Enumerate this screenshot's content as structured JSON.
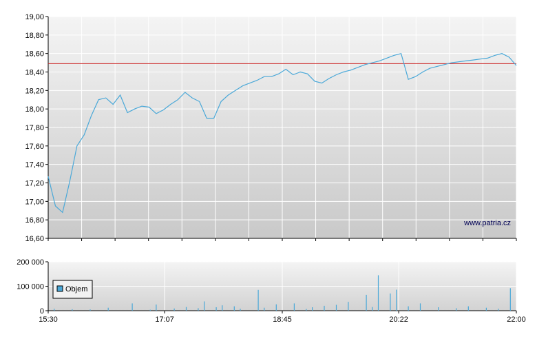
{
  "chart_data": [
    {
      "type": "line",
      "title": "",
      "watermark": "www.patria.cz",
      "ylim": [
        16.6,
        19.0
      ],
      "y_ticks": [
        "19,00",
        "18,80",
        "18,60",
        "18,40",
        "18,20",
        "18,00",
        "17,80",
        "17,60",
        "17,40",
        "17,20",
        "17,00",
        "16,80",
        "16,60"
      ],
      "reference_line": 18.49,
      "line_color": "#4aa8d8",
      "reference_color": "#cc2222",
      "grid": true,
      "series": [
        {
          "x": [
            "15:30",
            "15:36",
            "15:42",
            "15:48",
            "15:54",
            "16:00",
            "16:06",
            "16:12",
            "16:18",
            "16:24",
            "16:30",
            "16:36",
            "16:42",
            "16:48",
            "16:54",
            "17:00",
            "17:06",
            "17:12",
            "17:18",
            "17:24",
            "17:30",
            "17:36",
            "17:42",
            "17:48",
            "17:54",
            "18:00",
            "18:06",
            "18:12",
            "18:18",
            "18:24",
            "18:30",
            "18:36",
            "18:42",
            "18:48",
            "18:54",
            "19:00",
            "19:06",
            "19:12",
            "19:18",
            "19:24",
            "19:30",
            "19:36",
            "19:42",
            "19:48",
            "19:54",
            "20:00",
            "20:06",
            "20:12",
            "20:18",
            "20:24",
            "20:30",
            "20:36",
            "20:42",
            "20:48",
            "20:54",
            "21:00",
            "21:06",
            "21:12",
            "21:18",
            "21:24",
            "21:30",
            "21:36",
            "21:42",
            "21:48",
            "21:54",
            "22:00"
          ],
          "values": [
            17.27,
            16.95,
            16.88,
            17.22,
            17.6,
            17.72,
            17.93,
            18.1,
            18.12,
            18.05,
            18.15,
            17.96,
            18.0,
            18.03,
            18.02,
            17.95,
            17.99,
            18.05,
            18.1,
            18.18,
            18.12,
            18.08,
            17.9,
            17.9,
            18.08,
            18.15,
            18.2,
            18.25,
            18.28,
            18.31,
            18.35,
            18.35,
            18.38,
            18.43,
            18.37,
            18.4,
            18.38,
            18.3,
            18.28,
            18.33,
            18.37,
            18.4,
            18.42,
            18.45,
            18.48,
            18.5,
            18.52,
            18.55,
            18.58,
            18.6,
            18.32,
            18.35,
            18.4,
            18.44,
            18.46,
            18.48,
            18.5,
            18.51,
            18.52,
            18.53,
            18.54,
            18.55,
            18.58,
            18.6,
            18.56,
            18.47
          ]
        }
      ]
    },
    {
      "type": "bar",
      "title": "",
      "ylim": [
        0,
        200000
      ],
      "y_ticks": [
        "200 000",
        "100 000",
        "0"
      ],
      "x_ticks": [
        "15:30",
        "17:07",
        "18:45",
        "20:22",
        "22:00"
      ],
      "legend": {
        "label": "Objem",
        "position": "left"
      },
      "bar_color": "#4aa8d8",
      "grid": true,
      "series": [
        {
          "name": "Objem",
          "x": [
            "15:35",
            "15:50",
            "16:05",
            "16:20",
            "16:40",
            "16:55",
            "17:00",
            "17:15",
            "17:25",
            "17:35",
            "17:40",
            "17:50",
            "17:55",
            "18:05",
            "18:10",
            "18:25",
            "18:30",
            "18:40",
            "18:55",
            "19:05",
            "19:10",
            "19:20",
            "19:30",
            "19:40",
            "19:55",
            "20:00",
            "20:05",
            "20:15",
            "20:20",
            "20:30",
            "20:40",
            "20:55",
            "21:10",
            "21:20",
            "21:35",
            "21:45",
            "21:55"
          ],
          "values": [
            8000,
            6000,
            5000,
            12000,
            30000,
            4000,
            25000,
            9000,
            15000,
            10000,
            38000,
            14000,
            22000,
            18000,
            8000,
            85000,
            12000,
            26000,
            30000,
            7000,
            14000,
            20000,
            24000,
            36000,
            65000,
            15000,
            145000,
            70000,
            86000,
            18000,
            30000,
            14000,
            10000,
            18000,
            12000,
            8000,
            92000
          ]
        }
      ]
    }
  ]
}
